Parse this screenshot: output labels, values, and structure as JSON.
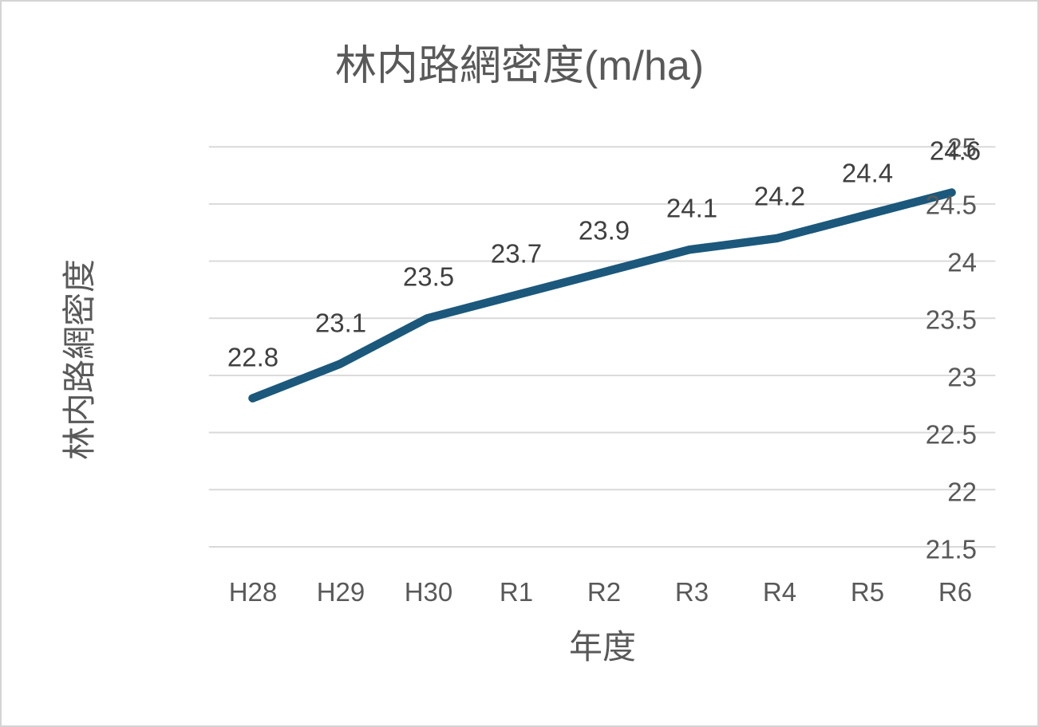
{
  "chart_data": {
    "type": "line",
    "title": "林内路網密度(m/ha)",
    "xlabel": "年度",
    "ylabel": "林内路網密度",
    "categories": [
      "H28",
      "H29",
      "H30",
      "R1",
      "R2",
      "R3",
      "R4",
      "R5",
      "R6"
    ],
    "series": [
      {
        "name": "林内路網密度",
        "values": [
          22.8,
          23.1,
          23.5,
          23.7,
          23.9,
          24.1,
          24.2,
          24.4,
          24.6
        ]
      }
    ],
    "data_labels": [
      "22.8",
      "23.1",
      "23.5",
      "23.7",
      "23.9",
      "24.1",
      "24.2",
      "24.4",
      "24.6"
    ],
    "data_label_position": "above",
    "ylim": [
      21.5,
      25
    ],
    "ytick_step": 0.5,
    "yticks": [
      25,
      24.5,
      24,
      23.5,
      23,
      22.5,
      22,
      21.5
    ],
    "ytick_labels": [
      "25",
      "24.5",
      "24",
      "23.5",
      "23",
      "22.5",
      "22",
      "21.5"
    ],
    "grid": true,
    "legend": "none",
    "colors": {
      "line": "#1B587C",
      "gridline": "#D9D9D9",
      "title_text": "#595959",
      "axis_text": "#595959",
      "data_label_text": "#404040",
      "background": "#FFFFFF",
      "frame_border": "#D4D4D4"
    }
  }
}
